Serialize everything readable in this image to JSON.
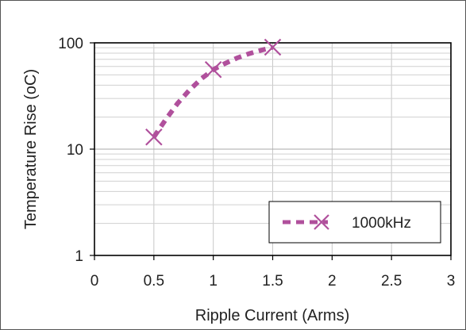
{
  "chart_data": {
    "type": "line",
    "title": "",
    "xlabel": "Ripple Current (Arms)",
    "ylabel": "Temperature Rise (oC)",
    "xlim": [
      0,
      3
    ],
    "ylim": [
      1,
      100
    ],
    "yscale": "log",
    "grid": true,
    "legend_position": "bottom-right",
    "x_ticks": [
      0,
      0.5,
      1,
      1.5,
      2,
      2.5,
      3
    ],
    "x_tick_labels": [
      "0",
      "0.5",
      "1",
      "1.5",
      "2",
      "2.5",
      "3"
    ],
    "y_ticks": [
      1,
      10,
      100
    ],
    "y_tick_labels": [
      "1",
      "10",
      "100"
    ],
    "series_color": "#b0509c",
    "series": [
      {
        "name": "1000kHz",
        "marker": "x-cross",
        "line_style": "dashed",
        "x": [
          0.5,
          1.0,
          1.5
        ],
        "y": [
          13,
          56,
          91
        ],
        "curve_x": [
          0.5,
          0.6,
          0.7,
          0.8,
          0.9,
          1.0,
          1.1,
          1.2,
          1.3,
          1.4,
          1.5
        ],
        "curve_y": [
          13,
          19,
          27,
          36,
          46,
          56,
          64,
          72,
          79,
          85,
          91
        ]
      }
    ]
  }
}
